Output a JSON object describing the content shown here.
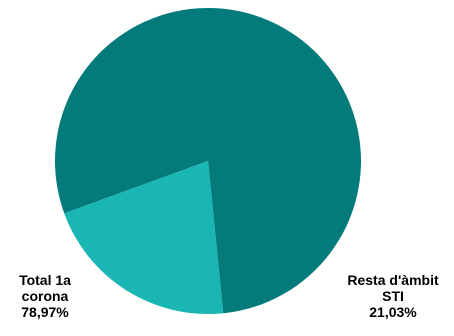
{
  "chart_data": {
    "type": "pie",
    "slices": [
      {
        "label_lines": [
          "Total 1a",
          "corona"
        ],
        "percent_label": "78,97%",
        "value": 78.97,
        "color": "#047b7b"
      },
      {
        "label_lines": [
          "Resta d'àmbit",
          "STI"
        ],
        "percent_label": "21,03%",
        "value": 21.03,
        "color": "#19b6b4"
      }
    ],
    "start_angle_deg": 0,
    "direction": "clockwise",
    "legend": "none"
  }
}
